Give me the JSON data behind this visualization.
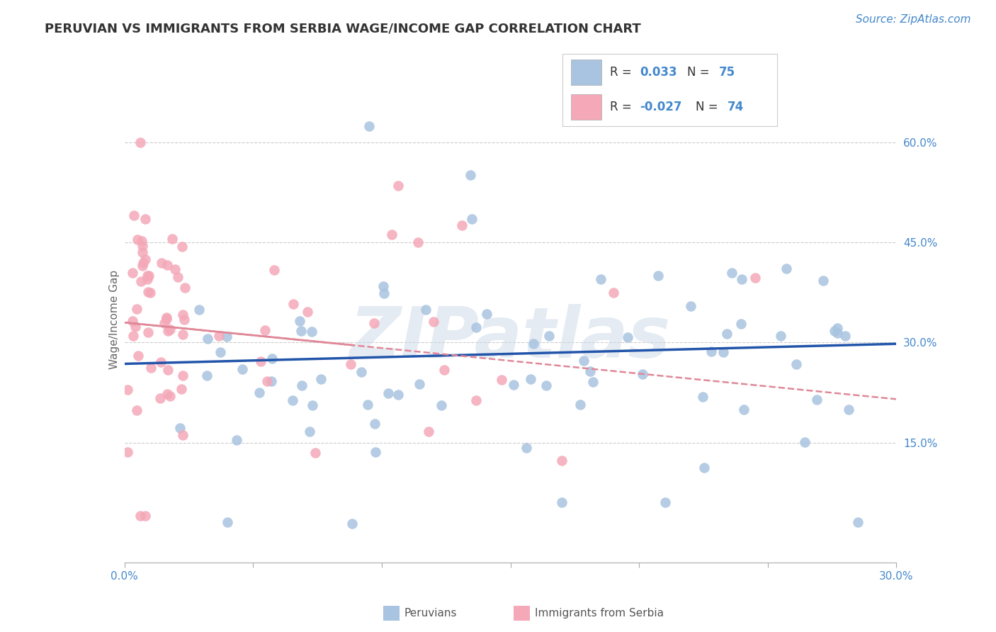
{
  "title": "PERUVIAN VS IMMIGRANTS FROM SERBIA WAGE/INCOME GAP CORRELATION CHART",
  "source": "Source: ZipAtlas.com",
  "ylabel": "Wage/Income Gap",
  "xlim": [
    0.0,
    0.3
  ],
  "ylim": [
    -0.03,
    0.7
  ],
  "ytick_vals": [
    0.15,
    0.3,
    0.45,
    0.6
  ],
  "ytick_labels": [
    "15.0%",
    "30.0%",
    "45.0%",
    "60.0%"
  ],
  "blue_color": "#a8c4e0",
  "pink_color": "#f4a8b8",
  "trend_blue_color": "#2255aa",
  "trend_pink_color": "#e08898",
  "watermark": "ZIPatlas",
  "watermark_color": "#ccd8e8",
  "grid_color": "#cccccc",
  "background_color": "#ffffff",
  "axis_color": "#4488cc",
  "title_color": "#333333",
  "blue_trend_y0": 0.268,
  "blue_trend_y1": 0.298,
  "pink_trend_y0": 0.33,
  "pink_trend_y1": 0.215
}
